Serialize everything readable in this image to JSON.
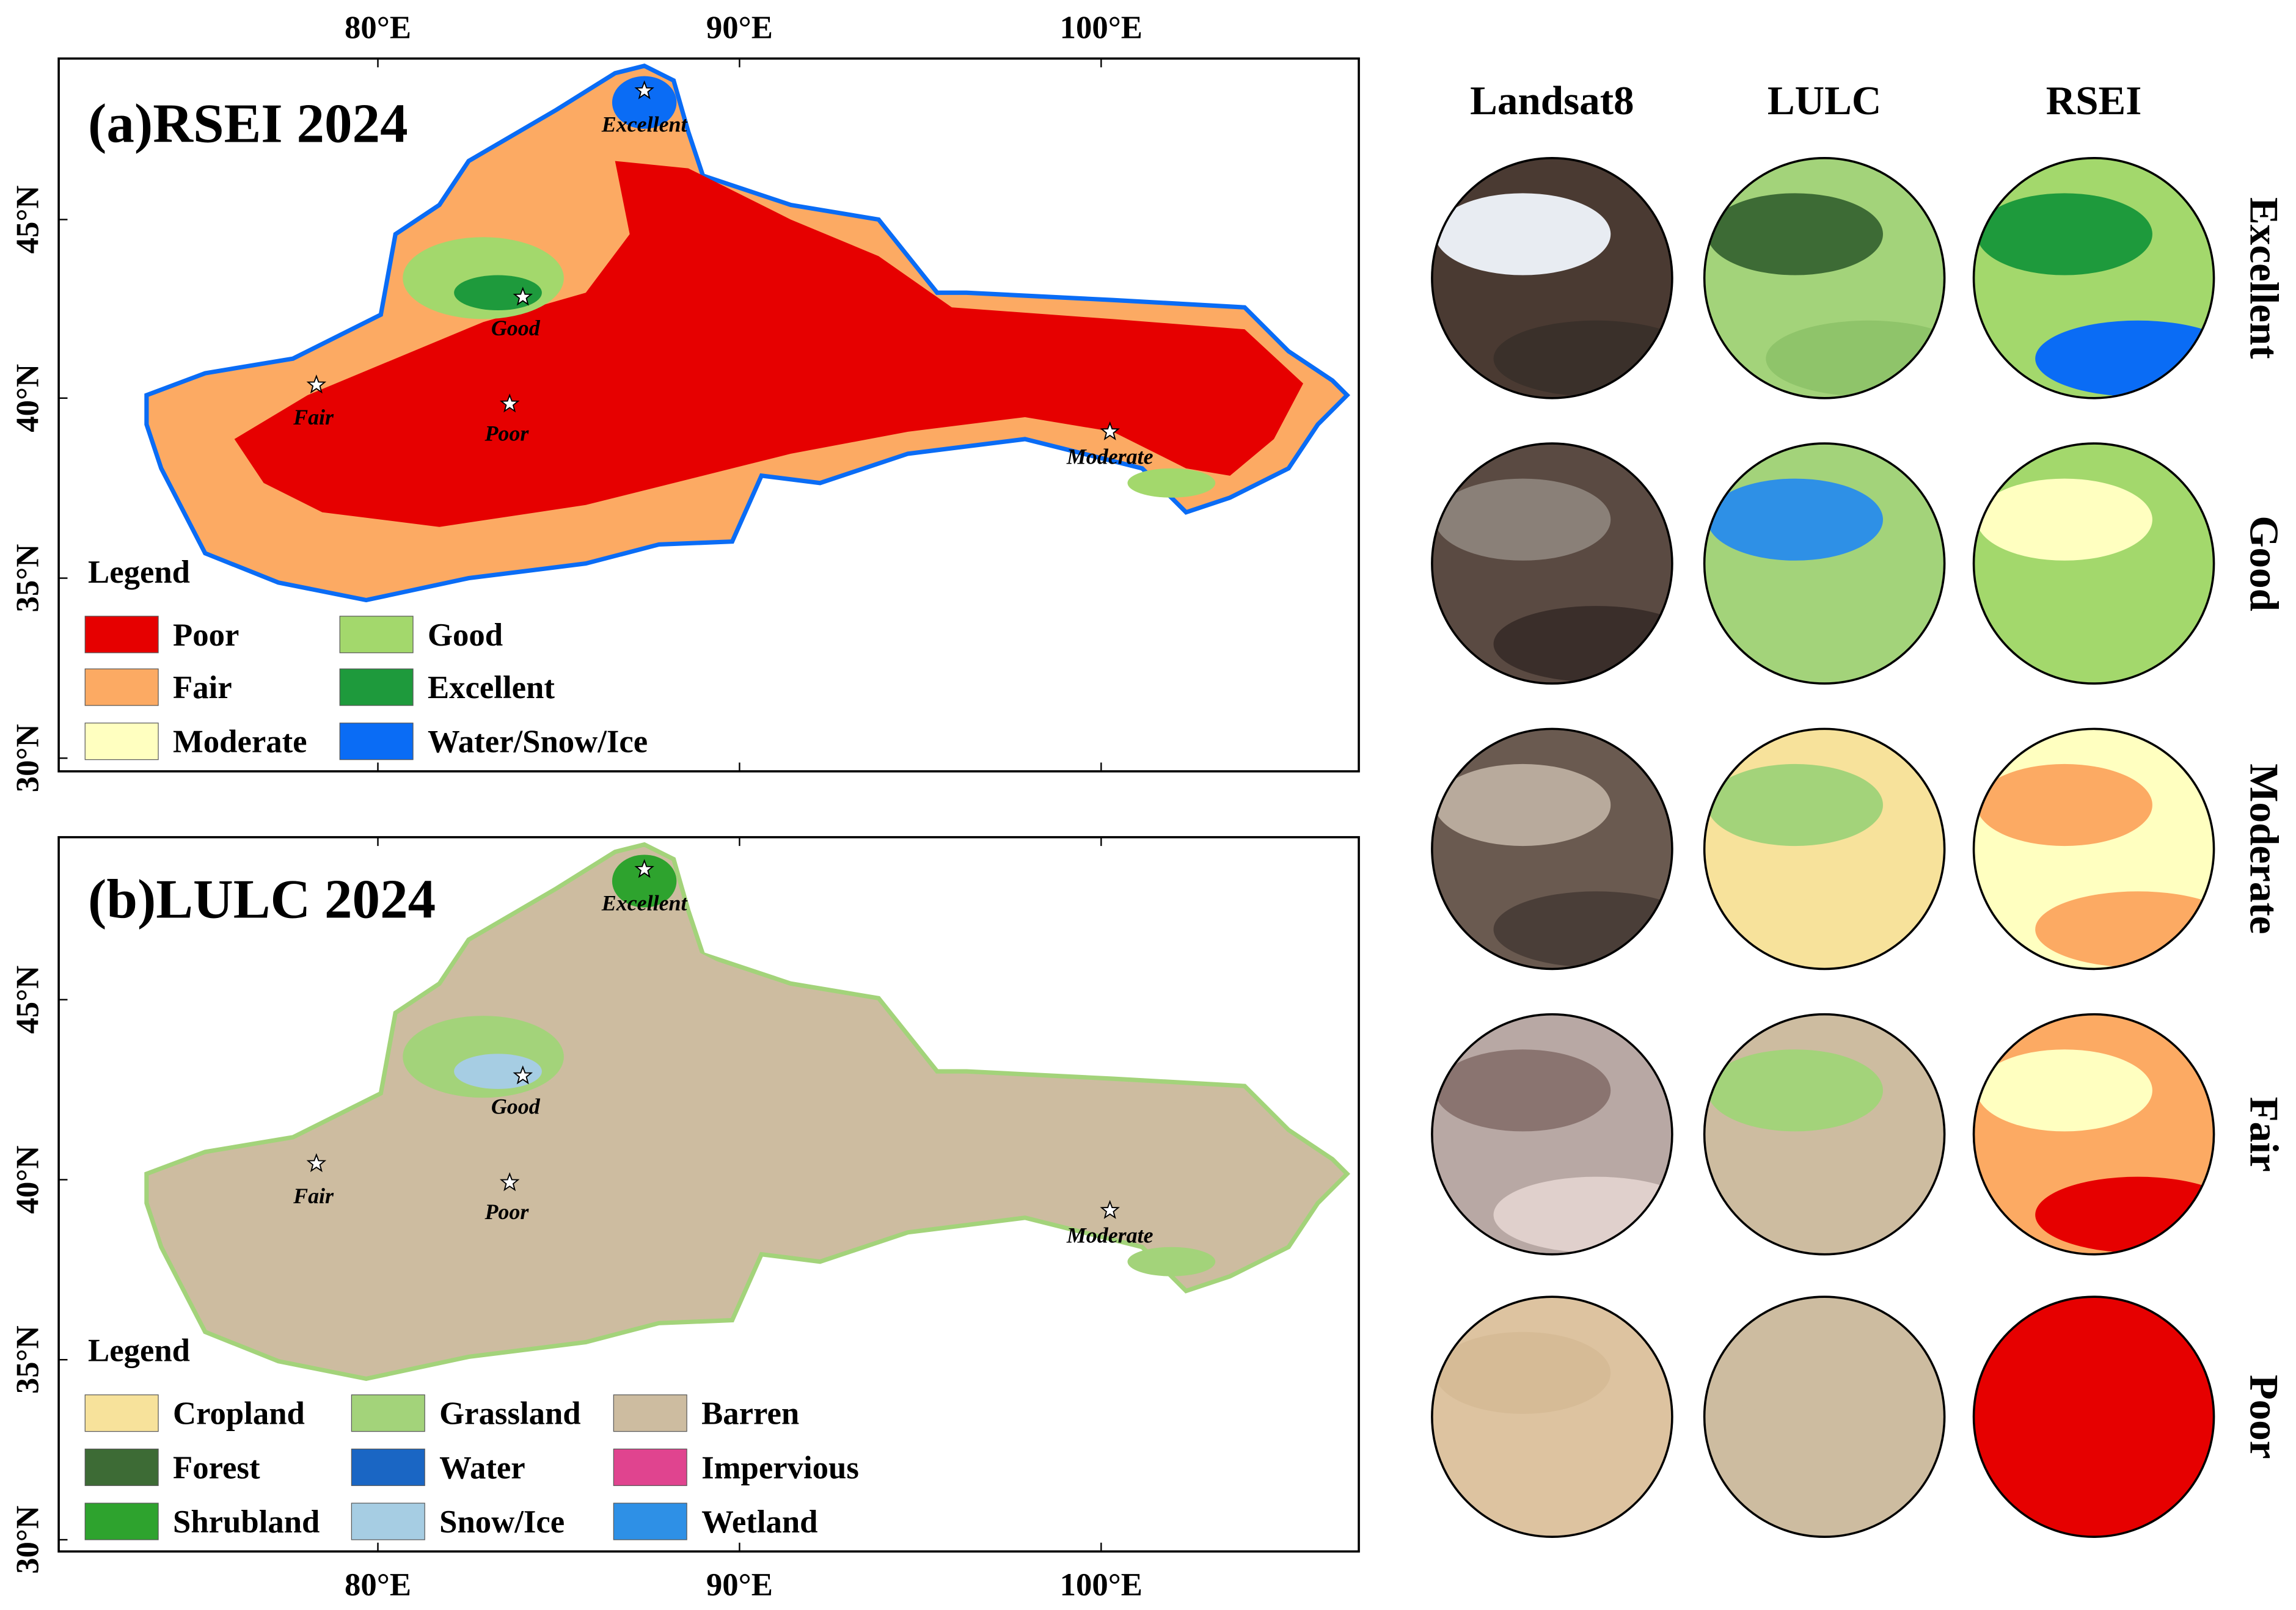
{
  "axes": {
    "x_labels": [
      "80°E",
      "90°E",
      "100°E"
    ],
    "y_labels": [
      "45°N",
      "40°N",
      "35°N",
      "30°N"
    ]
  },
  "panel_a": {
    "title": "(a)RSEI 2024",
    "legend_title": "Legend",
    "legend": [
      {
        "label": "Poor",
        "color": "#e60000"
      },
      {
        "label": "Fair",
        "color": "#fcaa63"
      },
      {
        "label": "Moderate",
        "color": "#ffffc0"
      },
      {
        "label": "Good",
        "color": "#a3d86c"
      },
      {
        "label": "Excellent",
        "color": "#1e9a3c"
      },
      {
        "label": "Water/Snow/Ice",
        "color": "#0a6cf5"
      }
    ],
    "sites": [
      "Excellent",
      "Good",
      "Fair",
      "Poor",
      "Moderate"
    ]
  },
  "panel_b": {
    "title": "(b)LULC 2024",
    "legend_title": "Legend",
    "legend": [
      {
        "label": "Cropland",
        "color": "#f7e29b"
      },
      {
        "label": "Forest",
        "color": "#3d6b35"
      },
      {
        "label": "Shrubland",
        "color": "#2ea32e"
      },
      {
        "label": "Grassland",
        "color": "#a3d37a"
      },
      {
        "label": "Water",
        "color": "#1a66c4"
      },
      {
        "label": "Snow/Ice",
        "color": "#a6cde3"
      },
      {
        "label": "Barren",
        "color": "#cdbca0"
      },
      {
        "label": "Impervious",
        "color": "#e0448f"
      },
      {
        "label": "Wetland",
        "color": "#2e90e6"
      }
    ],
    "sites": [
      "Excellent",
      "Good",
      "Fair",
      "Poor",
      "Moderate"
    ]
  },
  "thumbnails": {
    "columns": [
      "Landsat8",
      "LULC",
      "RSEI"
    ],
    "rows": [
      "Excellent",
      "Good",
      "Moderate",
      "Fair",
      "Poor"
    ]
  }
}
